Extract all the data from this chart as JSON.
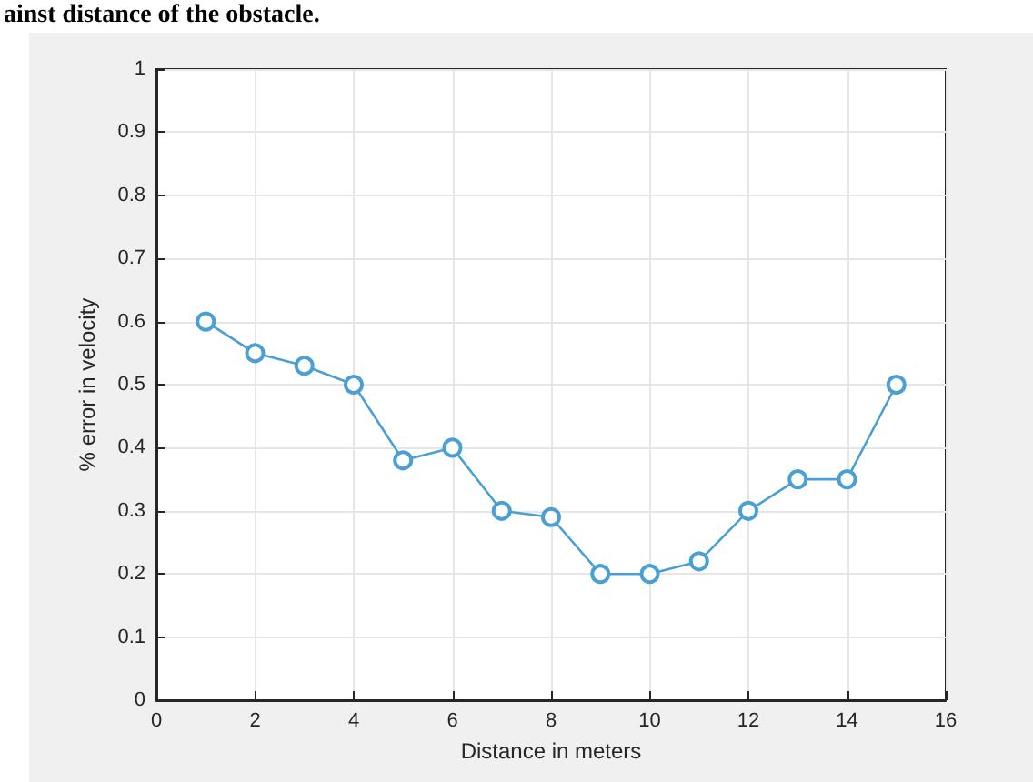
{
  "chart_data": {
    "type": "line",
    "xlabel": "Distance in meters",
    "ylabel": "% error in velocity",
    "annotations": [
      "ainst distance of the obstacle."
    ],
    "x": [
      1,
      2,
      3,
      4,
      5,
      6,
      7,
      8,
      9,
      10,
      11,
      12,
      13,
      14,
      15
    ],
    "series": [
      {
        "color": "#4a9fd4",
        "values": [
          0.6,
          0.55,
          0.53,
          0.5,
          0.38,
          0.4,
          0.3,
          0.29,
          0.2,
          0.2,
          0.22,
          0.3,
          0.35,
          0.35,
          0.5
        ]
      }
    ],
    "xlim": [
      0,
      16
    ],
    "xticks": [
      0,
      2,
      4,
      6,
      8,
      10,
      12,
      14,
      16
    ],
    "ylim": [
      0,
      1
    ],
    "yticks": [
      0,
      0.1,
      0.2,
      0.3,
      0.4,
      0.5,
      0.6,
      0.7,
      0.8,
      0.9,
      1
    ],
    "grid": true,
    "marker": "circle",
    "line_style": "solid"
  }
}
